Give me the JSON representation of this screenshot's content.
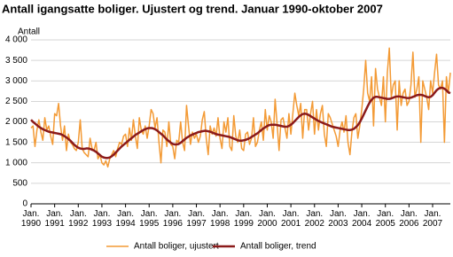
{
  "chart_data": {
    "type": "line",
    "title": "Antall igangsatte boliger. Ujustert og trend. Januar 1990-oktober 2007",
    "y_label": "Antall",
    "categories": [
      "Jan. 1990",
      null,
      null,
      null,
      null,
      null,
      null,
      null,
      null,
      null,
      null,
      null,
      "Jan. 1991",
      null,
      null,
      null,
      null,
      null,
      null,
      null,
      null,
      null,
      null,
      null,
      "Jan. 1992",
      null,
      null,
      null,
      null,
      null,
      null,
      null,
      null,
      null,
      null,
      null,
      "Jan. 1993",
      null,
      null,
      null,
      null,
      null,
      null,
      null,
      null,
      null,
      null,
      null,
      "Jan. 1994",
      null,
      null,
      null,
      null,
      null,
      null,
      null,
      null,
      null,
      null,
      null,
      "Jan. 1995",
      null,
      null,
      null,
      null,
      null,
      null,
      null,
      null,
      null,
      null,
      null,
      "Jan. 1996",
      null,
      null,
      null,
      null,
      null,
      null,
      null,
      null,
      null,
      null,
      null,
      "Jan. 1997",
      null,
      null,
      null,
      null,
      null,
      null,
      null,
      null,
      null,
      null,
      null,
      "Jan. 1998",
      null,
      null,
      null,
      null,
      null,
      null,
      null,
      null,
      null,
      null,
      null,
      "Jan. 1999",
      null,
      null,
      null,
      null,
      null,
      null,
      null,
      null,
      null,
      null,
      null,
      "Jan. 2000",
      null,
      null,
      null,
      null,
      null,
      null,
      null,
      null,
      null,
      null,
      null,
      "Jan. 2001",
      null,
      null,
      null,
      null,
      null,
      null,
      null,
      null,
      null,
      null,
      null,
      "Jan. 2002",
      null,
      null,
      null,
      null,
      null,
      null,
      null,
      null,
      null,
      null,
      null,
      "Jan. 2003",
      null,
      null,
      null,
      null,
      null,
      null,
      null,
      null,
      null,
      null,
      null,
      "Jan. 2004",
      null,
      null,
      null,
      null,
      null,
      null,
      null,
      null,
      null,
      null,
      null,
      "Jan. 2005",
      null,
      null,
      null,
      null,
      null,
      null,
      null,
      null,
      null,
      null,
      null,
      "Jan. 2006",
      null,
      null,
      null,
      null,
      null,
      null,
      null,
      null,
      null,
      null,
      null,
      "Jan. 2007",
      null,
      null,
      null,
      null,
      null,
      null,
      null,
      null,
      null
    ],
    "series": [
      {
        "name": "Antall boliger, ujustert",
        "color": "#f39a35",
        "width": 1.5,
        "values": [
          1850,
          1900,
          1400,
          1800,
          2050,
          1750,
          1550,
          2100,
          1800,
          1900,
          1650,
          1450,
          2200,
          2150,
          2450,
          1900,
          1550,
          1900,
          1300,
          1700,
          1500,
          1450,
          1350,
          1300,
          1500,
          2050,
          1350,
          1250,
          1200,
          1150,
          1600,
          1350,
          1300,
          1500,
          1100,
          1200,
          1000,
          950,
          1050,
          900,
          1100,
          1200,
          1300,
          1150,
          1350,
          1500,
          1450,
          1650,
          1700,
          1400,
          1850,
          1550,
          2050,
          1650,
          1350,
          2100,
          1800,
          1700,
          1900,
          1600,
          1900,
          2300,
          2200,
          1850,
          2100,
          1500,
          1000,
          1800,
          1750,
          1400,
          2000,
          1450,
          1400,
          1100,
          1550,
          1500,
          2000,
          1500,
          1300,
          2400,
          1900,
          1450,
          1750,
          1600,
          1700,
          1500,
          1650,
          2050,
          2250,
          1600,
          1200,
          1900,
          1700,
          1850,
          1650,
          2100,
          1600,
          1350,
          2000,
          1750,
          2100,
          1400,
          1300,
          2150,
          1650,
          1500,
          1800,
          1350,
          1300,
          1700,
          1750,
          1450,
          1600,
          2100,
          1400,
          1500,
          1800,
          2000,
          1550,
          2300,
          1800,
          2150,
          2000,
          1600,
          2550,
          1950,
          1300,
          2050,
          2100,
          1850,
          1600,
          2200,
          1700,
          2200,
          2700,
          2400,
          2150,
          2450,
          1600,
          2300,
          2300,
          1800,
          2200,
          2500,
          1700,
          2300,
          1800,
          2200,
          2400,
          1700,
          1400,
          2200,
          2100,
          1950,
          1800,
          1650,
          1400,
          1800,
          2000,
          1750,
          2150,
          1500,
          1200,
          1750,
          2100,
          2200,
          1600,
          1900,
          2300,
          2800,
          3500,
          2700,
          2500,
          3100,
          1900,
          3300,
          2800,
          2600,
          2400,
          3100,
          2000,
          3200,
          3800,
          2600,
          2900,
          3000,
          1800,
          3000,
          2400,
          2700,
          2800,
          2400,
          2500,
          2900,
          3700,
          2600,
          2800,
          3100,
          1500,
          3000,
          2800,
          2600,
          2300,
          3000,
          2700,
          3200,
          3650,
          2900,
          2800,
          3000,
          1500,
          3100,
          2700,
          3200
        ]
      },
      {
        "name": "Antall boliger, trend",
        "color": "#8b1a1a",
        "width": 2.5,
        "values": [
          2050,
          2000,
          1960,
          1920,
          1880,
          1850,
          1820,
          1800,
          1780,
          1760,
          1750,
          1740,
          1730,
          1720,
          1710,
          1700,
          1680,
          1650,
          1620,
          1580,
          1540,
          1490,
          1440,
          1400,
          1370,
          1350,
          1340,
          1340,
          1350,
          1350,
          1340,
          1320,
          1300,
          1270,
          1230,
          1190,
          1150,
          1130,
          1120,
          1120,
          1130,
          1160,
          1200,
          1250,
          1300,
          1350,
          1400,
          1440,
          1480,
          1520,
          1560,
          1600,
          1640,
          1680,
          1710,
          1740,
          1770,
          1800,
          1820,
          1840,
          1850,
          1850,
          1840,
          1820,
          1790,
          1750,
          1710,
          1670,
          1620,
          1570,
          1530,
          1490,
          1460,
          1450,
          1450,
          1460,
          1490,
          1530,
          1570,
          1610,
          1640,
          1670,
          1690,
          1710,
          1730,
          1750,
          1760,
          1770,
          1780,
          1780,
          1770,
          1760,
          1740,
          1720,
          1700,
          1690,
          1680,
          1670,
          1660,
          1650,
          1640,
          1630,
          1610,
          1590,
          1570,
          1550,
          1540,
          1540,
          1550,
          1560,
          1580,
          1600,
          1630,
          1660,
          1690,
          1720,
          1760,
          1800,
          1840,
          1870,
          1900,
          1920,
          1930,
          1930,
          1930,
          1920,
          1910,
          1900,
          1890,
          1880,
          1880,
          1900,
          1930,
          1970,
          2020,
          2070,
          2120,
          2160,
          2190,
          2200,
          2190,
          2170,
          2140,
          2110,
          2080,
          2050,
          2020,
          2000,
          1980,
          1960,
          1940,
          1920,
          1900,
          1880,
          1870,
          1860,
          1850,
          1840,
          1830,
          1820,
          1810,
          1800,
          1800,
          1810,
          1830,
          1870,
          1920,
          1990,
          2080,
          2180,
          2280,
          2380,
          2470,
          2540,
          2590,
          2610,
          2610,
          2600,
          2590,
          2580,
          2570,
          2560,
          2560,
          2570,
          2590,
          2610,
          2620,
          2620,
          2610,
          2600,
          2590,
          2580,
          2580,
          2590,
          2610,
          2630,
          2650,
          2660,
          2660,
          2650,
          2630,
          2610,
          2600,
          2610,
          2650,
          2710,
          2770,
          2810,
          2830,
          2830,
          2810,
          2770,
          2720,
          2700
        ]
      }
    ],
    "ylim": [
      0,
      4000
    ],
    "yticks": [
      0,
      500,
      {
        "value": 1000,
        "label": "1 000"
      },
      {
        "value": 1500,
        "label": "1 500"
      },
      {
        "value": 2000,
        "label": "2 000"
      },
      {
        "value": 2500,
        "label": "2 500"
      },
      {
        "value": 3000,
        "label": "3 000"
      },
      {
        "value": 3500,
        "label": "3 500"
      },
      {
        "value": 4000,
        "label": "4 000"
      }
    ],
    "grid": true,
    "legend": "bottom"
  }
}
